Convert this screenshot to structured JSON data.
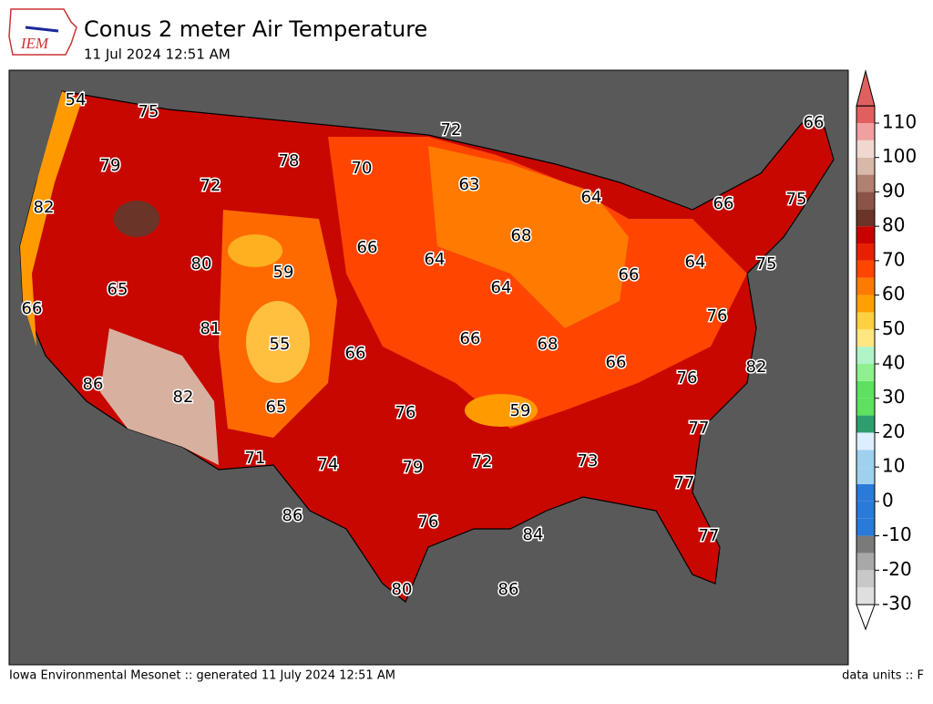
{
  "header": {
    "logo": "IEM",
    "title": "Conus 2 meter Air Temperature",
    "subtitle": "11 Jul 2024 12:51 AM"
  },
  "stations": [
    54,
    75,
    72,
    66,
    79,
    78,
    70,
    63,
    64,
    66,
    75,
    82,
    72,
    66,
    64,
    68,
    80,
    59,
    64,
    75,
    66,
    65,
    64,
    66,
    81,
    76,
    55,
    66,
    66,
    68,
    66,
    82,
    86,
    82,
    76,
    65,
    76,
    59,
    77,
    71,
    74,
    79,
    72,
    73,
    77,
    86,
    76,
    84,
    77,
    80,
    86
  ],
  "colorbar": {
    "range": [
      -30,
      115
    ],
    "ticks": [
      -30,
      -20,
      -10,
      0,
      10,
      20,
      30,
      40,
      50,
      60,
      70,
      80,
      90,
      100,
      110
    ],
    "colors": [
      "#e0dede",
      "#c8c8c8",
      "#a8a8a8",
      "#7a7a7a",
      "#2a7ad8",
      "#2a7ad8",
      "#2a7ad8",
      "#9fd0ee",
      "#9fd0ee",
      "#ddeeff",
      "#2e9e6e",
      "#5fe060",
      "#5fe060",
      "#8ef08e",
      "#b0f4c8",
      "#ffe680",
      "#ffd040",
      "#ffa000",
      "#ff7a00",
      "#ff4500",
      "#e82000",
      "#c80000",
      "#6a3428",
      "#8a5448",
      "#b08070",
      "#d8b8a8",
      "#f0d8d0",
      "#f0a0a0",
      "#e06060"
    ]
  },
  "footer": {
    "left": "Iowa Environmental Mesonet :: generated 11 July 2024 12:51 AM",
    "right": "data units :: F"
  }
}
